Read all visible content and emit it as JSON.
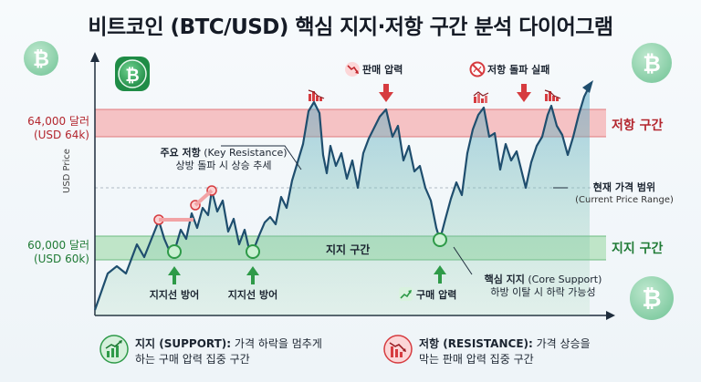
{
  "title": "비트코인 (BTC/USD) 핵심 지지·저항 구간 분석 다이어그램",
  "axis": {
    "ylabel": "USD Price"
  },
  "levels": {
    "resistance_price": "64,000 달러",
    "resistance_short": "(USD 64k)",
    "support_price": "60,000 달러",
    "support_short": "(USD 60k)"
  },
  "zones": {
    "resistance_label": "저항 구간",
    "support_label": "지지 구간",
    "support_inner_label": "지지 구간"
  },
  "annotations": {
    "key_resistance_title": "주요 저항",
    "key_resistance_en": "(Key Resistance)",
    "key_resistance_desc": "상방 돌파 시 상승 추세",
    "sell_pressure": "판매 압력",
    "resistance_break_fail": "저항 돌파 실패",
    "current_range_title": "현재 가격 범위",
    "current_range_en": "(Current Price Range)",
    "support_defense_1": "지지선 방어",
    "support_defense_2": "지지선 방어",
    "buy_pressure": "구매 압력",
    "core_support_title": "핵심 지지",
    "core_support_en": "(Core Support)",
    "core_support_desc": "하방 이탈 시 하락 가능성"
  },
  "legend": {
    "support_title": "지지 (SUPPORT):",
    "support_desc_1": "가격 하락을 멈추게",
    "support_desc_2": "하는 구매 압력 집중 구간",
    "resistance_title": "저항 (RESISTANCE):",
    "resistance_desc_1": "가격 상승을",
    "resistance_desc_2": "막는 판매 압력 집중 구간"
  },
  "colors": {
    "resistance": "#d63b3f",
    "support": "#2e9a48",
    "line": "#1f4e6e",
    "bitcoin": "#2fa65a"
  },
  "icons": [
    "bitcoin-icon",
    "arrow-up-icon",
    "arrow-down-icon",
    "chart-up-icon",
    "chart-down-icon",
    "no-entry-icon"
  ]
}
